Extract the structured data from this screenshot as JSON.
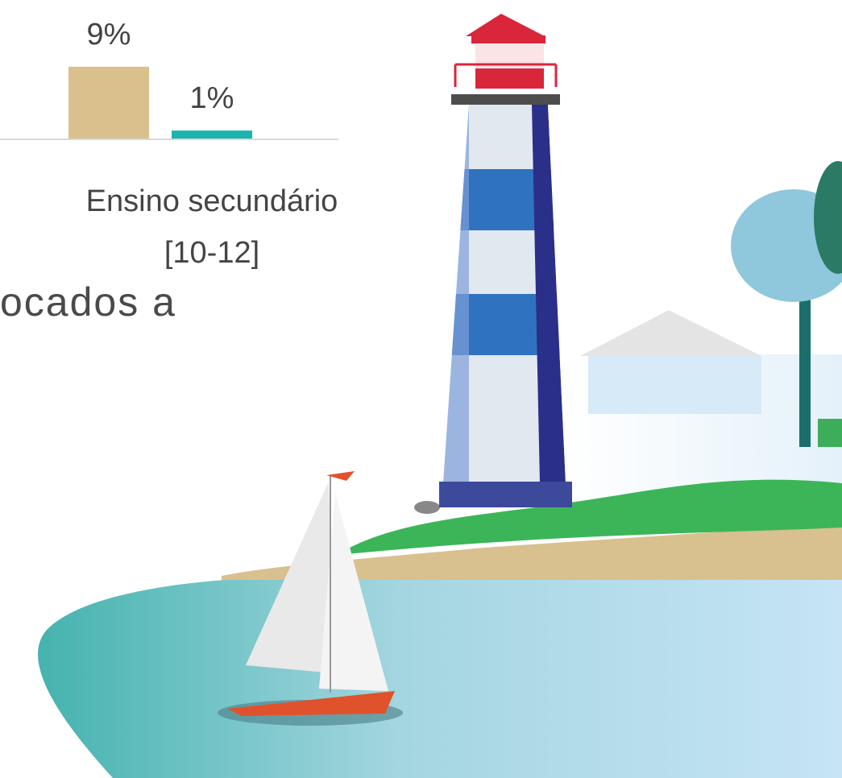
{
  "chart_data": {
    "type": "bar",
    "categories": [
      "Ensino secundário [10-12]"
    ],
    "series": [
      {
        "color": "#d9c08c",
        "values": [
          9
        ],
        "value_labels": [
          "9%"
        ]
      },
      {
        "color": "#1bb3ad",
        "values": [
          1
        ],
        "value_labels": [
          "1%"
        ]
      }
    ],
    "annotations": [
      "ocados a"
    ]
  }
}
